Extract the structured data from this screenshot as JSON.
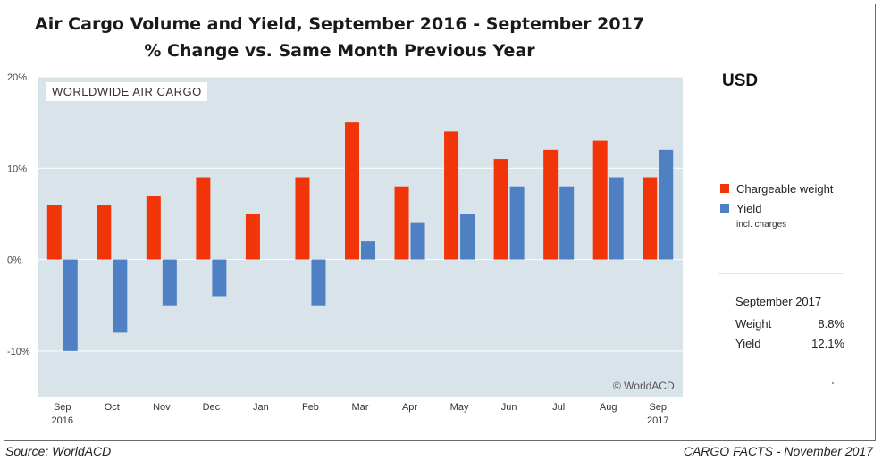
{
  "title_line1": "Air Cargo Volume and Yield, September 2016 - September 2017",
  "title_line2": "% Change vs. Same Month Previous Year",
  "box_label": "WORLDWIDE AIR CARGO",
  "credit": "© WorldACD",
  "currency": "USD",
  "legend": {
    "weight_label": "Chargeable weight",
    "yield_label": "Yield",
    "yield_note": "incl. charges"
  },
  "stats": {
    "heading": "September 2017",
    "weight_label": "Weight",
    "weight_value": "8.8%",
    "yield_label": "Yield",
    "yield_value": "12.1%"
  },
  "footer": {
    "source": "Source: WorldACD",
    "publication": "CARGO FACTS - November 2017"
  },
  "colors": {
    "weight": "#f23508",
    "yield": "#4f80c3",
    "plot_bg": "#d8e3ea",
    "grid": "#ffffff"
  },
  "chart_data": {
    "type": "bar",
    "categories": [
      "Sep",
      "Oct",
      "Nov",
      "Dec",
      "Jan",
      "Feb",
      "Mar",
      "Apr",
      "May",
      "Jun",
      "Jul",
      "Aug",
      "Sep"
    ],
    "category_sublabels": [
      "2016",
      "",
      "",
      "",
      "",
      "",
      "",
      "",
      "",
      "",
      "",
      "",
      "2017"
    ],
    "series": [
      {
        "name": "Chargeable weight",
        "values": [
          6,
          6,
          7,
          9,
          5,
          9,
          15,
          8,
          14,
          11,
          12,
          13,
          9
        ]
      },
      {
        "name": "Yield",
        "values": [
          -10,
          -8,
          -5,
          -4,
          0,
          -5,
          2,
          4,
          5,
          8,
          8,
          9,
          12
        ]
      }
    ],
    "ylim": [
      -15,
      20
    ],
    "yticks": [
      20,
      10,
      0,
      -10
    ],
    "ytick_labels": [
      "20%",
      "10%",
      "0%",
      "-10%"
    ],
    "xlabel": "",
    "ylabel": "",
    "grid": true,
    "legend_position": "right"
  }
}
